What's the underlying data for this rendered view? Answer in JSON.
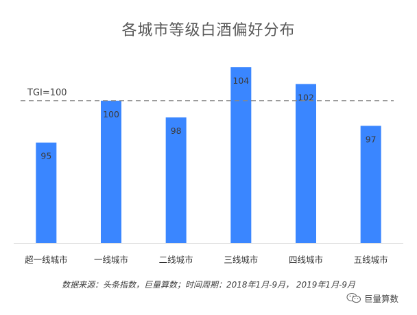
{
  "chart_data": {
    "type": "bar",
    "title": "各城市等级白酒偏好分布",
    "categories": [
      "超一线城市",
      "一线城市",
      "二线城市",
      "三线城市",
      "四线城市",
      "五线城市"
    ],
    "values": [
      95,
      100,
      98,
      104,
      102,
      97
    ],
    "data_labels": [
      "95",
      "100",
      "98",
      "104",
      "102",
      "97"
    ],
    "reference_line": {
      "value": 100,
      "label": "TGI=100",
      "style": "dashed"
    },
    "xlabel": "",
    "ylabel": "",
    "ylim": [
      83,
      106
    ],
    "grid": false,
    "legend": "none",
    "colors": {
      "bar": "#3a86ff",
      "reference_line": "#888888",
      "axis": "#d9d9d9"
    }
  },
  "footnote": "数据来源：头条指数，巨量算数；时间周期：2018年1月-9月， 2019年1月-9月",
  "watermark": {
    "icon": "wechat-icon",
    "text": "巨量算数"
  }
}
